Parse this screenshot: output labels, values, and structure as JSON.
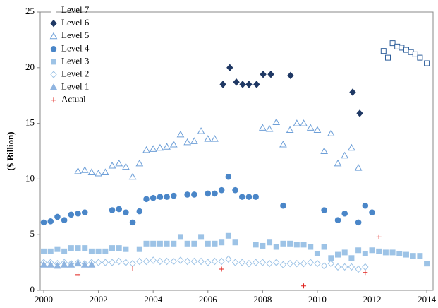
{
  "chart_data": {
    "type": "scatter",
    "y_label": "($ Billion)",
    "xlim": [
      1999.87,
      2014.23
    ],
    "ylim": [
      0,
      25
    ],
    "xticks": [
      2000,
      2002,
      2004,
      2006,
      2008,
      2010,
      2012,
      2014
    ],
    "yticks": [
      0,
      5,
      10,
      15,
      20,
      25
    ],
    "grid": false,
    "legend": "upper-left",
    "series": [
      {
        "name": "Level 7",
        "color": "#2e5e9a",
        "marker": "square",
        "filled": false,
        "x": [
          2012.42,
          2012.58,
          2012.75,
          2012.92,
          2013.08,
          2013.25,
          2013.42,
          2013.58,
          2013.75,
          2014.0
        ],
        "values": [
          21.5,
          20.9,
          22.2,
          21.9,
          21.8,
          21.6,
          21.4,
          21.2,
          20.9,
          20.4
        ]
      },
      {
        "name": "Level 6",
        "color": "#1f3864",
        "marker": "diamond",
        "filled": true,
        "x": [
          2006.55,
          2006.8,
          2007.04,
          2007.27,
          2007.5,
          2007.78,
          2008.02,
          2008.3,
          2009.02,
          2011.29,
          2011.55
        ],
        "values": [
          18.5,
          20.0,
          18.7,
          18.5,
          18.5,
          18.5,
          19.4,
          19.4,
          19.3,
          17.8,
          15.9
        ]
      },
      {
        "name": "Level 5",
        "color": "#6d9fd8",
        "marker": "triangle",
        "filled": false,
        "x": [
          2001.25,
          2001.5,
          2001.75,
          2002.0,
          2002.25,
          2002.5,
          2002.75,
          2003.0,
          2003.25,
          2003.5,
          2003.75,
          2004.0,
          2004.25,
          2004.5,
          2004.75,
          2005.0,
          2005.25,
          2005.5,
          2005.75,
          2006.0,
          2006.25,
          2008.0,
          2008.25,
          2008.5,
          2008.75,
          2009.0,
          2009.25,
          2009.5,
          2009.75,
          2010.0,
          2010.25,
          2010.5,
          2010.75,
          2011.0,
          2011.25,
          2011.5
        ],
        "values": [
          10.7,
          10.8,
          10.6,
          10.5,
          10.6,
          11.2,
          11.4,
          11.1,
          10.2,
          11.4,
          12.6,
          12.7,
          12.8,
          12.9,
          13.1,
          14.0,
          13.3,
          13.4,
          14.3,
          13.6,
          13.6,
          14.6,
          14.5,
          15.1,
          13.1,
          14.4,
          15.0,
          15.0,
          14.6,
          14.4,
          12.5,
          14.1,
          11.4,
          12.1,
          12.8,
          11.0
        ]
      },
      {
        "name": "Level 4",
        "color": "#4a86c8",
        "marker": "circle",
        "filled": true,
        "x": [
          2000.0,
          2000.25,
          2000.5,
          2000.75,
          2001.0,
          2001.25,
          2001.5,
          2002.5,
          2002.75,
          2003.0,
          2003.25,
          2003.5,
          2003.75,
          2004.0,
          2004.25,
          2004.5,
          2004.75,
          2005.25,
          2005.5,
          2006.0,
          2006.25,
          2006.5,
          2006.75,
          2007.0,
          2007.25,
          2007.5,
          2007.75,
          2008.75,
          2010.25,
          2010.75,
          2011.0,
          2011.5,
          2011.75,
          2012.0
        ],
        "values": [
          6.1,
          6.2,
          6.6,
          6.3,
          6.8,
          6.9,
          7.0,
          7.2,
          7.3,
          7.0,
          6.1,
          7.1,
          8.2,
          8.3,
          8.4,
          8.4,
          8.5,
          8.6,
          8.6,
          8.7,
          8.7,
          9.0,
          10.2,
          9.0,
          8.4,
          8.4,
          8.4,
          7.6,
          7.2,
          6.3,
          6.9,
          6.1,
          7.6,
          7.0
        ]
      },
      {
        "name": "Level 3",
        "color": "#9dc3e6",
        "marker": "square",
        "filled": true,
        "x": [
          2000.0,
          2000.25,
          2000.5,
          2000.75,
          2001.0,
          2001.25,
          2001.5,
          2001.75,
          2002.0,
          2002.25,
          2002.5,
          2002.75,
          2003.0,
          2003.5,
          2003.75,
          2004.0,
          2004.25,
          2004.5,
          2004.75,
          2005.0,
          2005.25,
          2005.5,
          2005.75,
          2006.0,
          2006.25,
          2006.5,
          2006.75,
          2007.0,
          2007.75,
          2008.0,
          2008.25,
          2008.5,
          2008.75,
          2009.0,
          2009.25,
          2009.5,
          2009.75,
          2010.0,
          2010.25,
          2010.5,
          2010.75,
          2011.0,
          2011.25,
          2011.5,
          2011.75,
          2012.0,
          2012.25,
          2012.5,
          2012.75,
          2013.0,
          2013.25,
          2013.5,
          2013.75,
          2014.0
        ],
        "values": [
          3.5,
          3.5,
          3.7,
          3.5,
          3.8,
          3.8,
          3.8,
          3.5,
          3.5,
          3.5,
          3.8,
          3.8,
          3.7,
          3.7,
          4.2,
          4.2,
          4.2,
          4.2,
          4.2,
          4.8,
          4.2,
          4.2,
          4.8,
          4.2,
          4.2,
          4.3,
          4.9,
          4.3,
          4.1,
          4.0,
          4.3,
          3.9,
          4.2,
          4.2,
          4.1,
          4.1,
          3.9,
          3.3,
          3.9,
          2.9,
          3.2,
          3.4,
          2.9,
          3.6,
          3.3,
          3.6,
          3.5,
          3.4,
          3.4,
          3.3,
          3.2,
          3.1,
          3.1,
          2.4
        ]
      },
      {
        "name": "Level 2",
        "color": "#9dc3e6",
        "marker": "diamond",
        "filled": false,
        "x": [
          2000.0,
          2000.25,
          2000.5,
          2000.75,
          2001.0,
          2001.25,
          2001.5,
          2001.75,
          2002.0,
          2002.25,
          2002.5,
          2002.75,
          2003.0,
          2003.25,
          2003.5,
          2003.75,
          2004.0,
          2004.25,
          2004.5,
          2004.75,
          2005.0,
          2005.25,
          2005.5,
          2005.75,
          2006.0,
          2006.25,
          2006.5,
          2006.75,
          2007.0,
          2007.25,
          2007.5,
          2007.75,
          2008.0,
          2008.25,
          2008.5,
          2008.75,
          2009.0,
          2009.25,
          2009.5,
          2009.75,
          2010.0,
          2010.25,
          2010.5,
          2010.75,
          2011.0,
          2011.25,
          2011.5,
          2011.75
        ],
        "values": [
          2.5,
          2.5,
          2.4,
          2.5,
          2.4,
          2.5,
          2.4,
          2.5,
          2.5,
          2.5,
          2.5,
          2.6,
          2.5,
          2.4,
          2.6,
          2.6,
          2.7,
          2.6,
          2.6,
          2.6,
          2.7,
          2.6,
          2.6,
          2.6,
          2.5,
          2.6,
          2.6,
          2.8,
          2.5,
          2.5,
          2.4,
          2.5,
          2.5,
          2.4,
          2.5,
          2.3,
          2.4,
          2.4,
          2.4,
          2.5,
          2.4,
          2.2,
          2.4,
          2.1,
          2.1,
          2.1,
          1.9,
          2.1
        ]
      },
      {
        "name": "Level 1",
        "color": "#8fb4e0",
        "marker": "triangle",
        "filled": true,
        "x": [
          2000.0,
          2000.25,
          2000.5,
          2000.75,
          2001.0,
          2001.25,
          2001.5,
          2001.75
        ],
        "values": [
          2.3,
          2.3,
          2.2,
          2.3,
          2.3,
          2.4,
          2.3,
          2.3
        ]
      },
      {
        "name": "Actual",
        "color": "#e0201b",
        "marker": "plus",
        "filled": false,
        "x": [
          2001.25,
          2003.25,
          2006.5,
          2009.5,
          2011.75,
          2012.25
        ],
        "values": [
          1.4,
          2.0,
          1.9,
          0.4,
          1.6,
          4.8
        ]
      }
    ]
  }
}
